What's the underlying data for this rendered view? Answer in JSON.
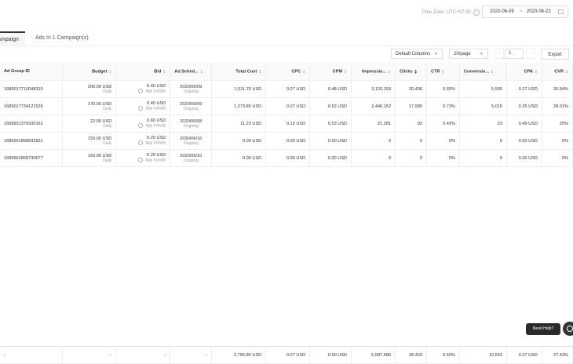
{
  "header": {
    "timezone": "Time Zone: UTC+07:00",
    "info_icon": "info-icon",
    "date_start": "2020-06-09",
    "date_sep": "~",
    "date_end": "2020-06-22",
    "calendar_icon": "calendar-icon"
  },
  "tabs": [
    {
      "label": "Campaign"
    },
    {
      "label": "Ads In 1 Campaign(s)"
    }
  ],
  "toolbar": {
    "columns_select": "Default Columns",
    "page_size_select": "20/page",
    "page_input": "1",
    "export_label": "Export"
  },
  "table": {
    "headers": [
      "Ad Group ID",
      "Budget",
      "Bid",
      "Ad Sched...",
      "Total Cost",
      "CPC",
      "CPM",
      "Impressio...",
      "Clicks",
      "CTR",
      "Conversio...",
      "CPA",
      "CVR"
    ],
    "rows": [
      {
        "id": "1689017710048310",
        "budget": "200.00 USD",
        "budget_sub": "Daily",
        "bid": "0.40 USD",
        "bid_sub": "App Installs",
        "sched": "2020/06/09",
        "sched_sub": "Ongoing",
        "cost": "1,511.76 USD",
        "cpc": "0.07 USD",
        "cpm": "0.48 USD",
        "impr": "3,120,153",
        "clicks": "20,436",
        "ctr": "0.65%",
        "conv": "5,505",
        "cpa": "0.27 USD",
        "cvr": "26.94%"
      },
      {
        "id": "1689017734121526",
        "budget": "170.00 USD",
        "budget_sub": "Daily",
        "bid": "0.40 USD",
        "bid_sub": "App Installs",
        "sched": "2020/06/09",
        "sched_sub": "Ongoing",
        "cost": "1,273.85 USD",
        "cpc": "0.07 USD",
        "cpm": "0.52 USD",
        "impr": "2,446,152",
        "clicks": "17,905",
        "ctr": "0.73%",
        "conv": "5,015",
        "cpa": "0.25 USD",
        "cvr": "28.01%"
      },
      {
        "id": "1668931370930161",
        "budget": "22.00 USD",
        "budget_sub": "Daily",
        "bid": "0.60 USD",
        "bid_sub": "App Installs",
        "sched": "2020/06/08",
        "sched_sub": "Ongoing",
        "cost": "11.23 USD",
        "cpc": "0.12 USD",
        "cpm": "0.53 USD",
        "impr": "21,281",
        "clicks": "92",
        "ctr": "0.43%",
        "conv": "23",
        "cpa": "0.49 USD",
        "cvr": "25%"
      },
      {
        "id": "1685591868832821",
        "budget": "150.00 USD",
        "budget_sub": "Daily",
        "bid": "0.20 USD",
        "bid_sub": "App Installs",
        "sched": "2030/06/16",
        "sched_sub": "Ongoing",
        "cost": "0.00 USD",
        "cpc": "0.00 USD",
        "cpm": "0.00 USD",
        "impr": "0",
        "clicks": "0",
        "ctr": "0%",
        "conv": "0",
        "cpa": "0.00 USD",
        "cvr": "0%"
      },
      {
        "id": "1689591868730677",
        "budget": "150.00 USD",
        "budget_sub": "Daily",
        "bid": "0.20 USD",
        "bid_sub": "App Installs",
        "sched": "2020/06/10",
        "sched_sub": "Ongoing",
        "cost": "0.00 USD",
        "cpc": "0.00 USD",
        "cpm": "0.00 USD",
        "impr": "0",
        "clicks": "0",
        "ctr": "0%",
        "conv": "0",
        "cpa": "0.00 USD",
        "cvr": "0%"
      }
    ],
    "totals": {
      "id": "-",
      "budget": "-",
      "bid": "-",
      "sched": "-",
      "cost": "2,796.84 USD",
      "cpc": "0.07 USD",
      "cpm": "0.50 USD",
      "impr": "5,587,586",
      "clicks": "38,433",
      "ctr": "0.69%",
      "conv": "10,543",
      "cpa": "0.27 USD",
      "cvr": "27.43%"
    }
  },
  "help": {
    "label": "Need Help?"
  }
}
